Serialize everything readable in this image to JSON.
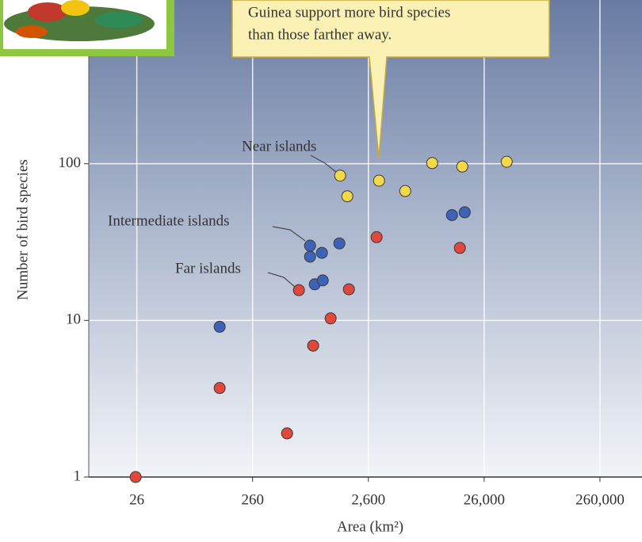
{
  "chart_data": {
    "type": "scatter",
    "callout": [
      "Guinea support more bird species",
      "than those farther away."
    ],
    "annotations": [
      "Near islands",
      "Intermediate islands",
      "Far islands"
    ],
    "xlabel": "Area (km²)",
    "ylabel": "Number of bird species",
    "xscale": "log",
    "yscale": "log",
    "grid": true,
    "xlim": [
      10,
      600000
    ],
    "ylim": [
      1,
      1000
    ],
    "xticks": [
      26,
      260,
      {
        "value": 2600,
        "label": "2,600"
      },
      {
        "value": 26000,
        "label": "26,000"
      },
      {
        "value": 260000,
        "label": "260,000"
      }
    ],
    "yticks": [
      1,
      10,
      100
    ],
    "series": [
      {
        "name": "Near islands",
        "color": "#f3d94a",
        "x": [
          1483,
          1710,
          3214,
          5408,
          9247,
          16830,
          40700
        ],
        "values": [
          84,
          62,
          78,
          67,
          101,
          96,
          103
        ]
      },
      {
        "name": "Intermediate islands",
        "color": "#3d63b8",
        "x": [
          135,
          815,
          815,
          1032,
          1460,
          895,
          1049,
          13710,
          17660
        ],
        "values": [
          9.1,
          30,
          25.5,
          27,
          31,
          17,
          18,
          47,
          49
        ]
      },
      {
        "name": "Far islands",
        "color": "#e2473c",
        "x": [
          25.4,
          135,
          516,
          653,
          867,
          1227,
          1765,
          3063,
          16040
        ],
        "values": [
          1.0,
          3.7,
          1.9,
          15.6,
          6.9,
          10.3,
          15.8,
          34,
          29
        ]
      }
    ]
  }
}
